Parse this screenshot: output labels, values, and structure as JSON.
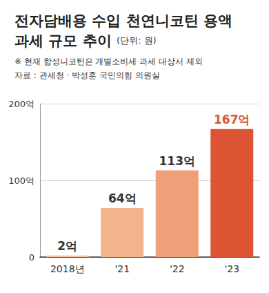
{
  "chart_data": {
    "type": "bar",
    "title": "전자담배용 수입 천연니코틴 용액\n과세 규모 추이",
    "unit": "(단위: 원)",
    "note": "※ 현재 합성니코틴은 개별소비세 과세 대상서 제외",
    "source": "자료 : 관세청 · 박성훈 국민의힘 의원실",
    "categories": [
      "2018년",
      "'21",
      "'22",
      "'23"
    ],
    "values": [
      2,
      64,
      113,
      167
    ],
    "value_labels": [
      "2억",
      "64억",
      "113억",
      "167억"
    ],
    "colors": [
      "#f7c3a0",
      "#f3b48c",
      "#f0a078",
      "#dc5434"
    ],
    "data_labels": true,
    "ylim": [
      0,
      200
    ],
    "yticks": [
      0,
      {
        "value": 100,
        "label": "100억"
      },
      {
        "value": 200,
        "label": "200억"
      }
    ],
    "grid": true
  }
}
